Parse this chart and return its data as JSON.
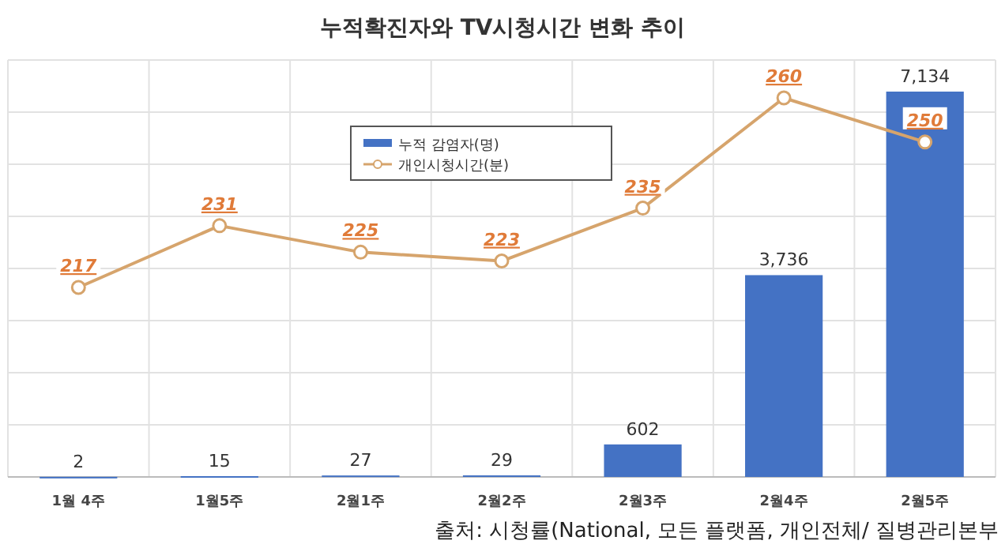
{
  "chart_data": {
    "type": "bar",
    "title": "누적확진자와 TV시청시간 변화 추이",
    "categories": [
      "1월 4주",
      "1월5주",
      "2월1주",
      "2월2주",
      "2월3주",
      "2월4주",
      "2월5주"
    ],
    "series": [
      {
        "name": "누적 감염자(명)",
        "color": "#4472c4",
        "values": [
          2,
          15,
          27,
          29,
          602,
          3736,
          7134
        ],
        "value_labels": [
          "2",
          "15",
          "27",
          "29",
          "602",
          "3,736",
          "7,134"
        ]
      },
      {
        "name": "개인시청시간(분)",
        "type": "line",
        "axis": "y2",
        "color": "#d6a46c",
        "marker": "circle",
        "values": [
          217,
          231,
          225,
          223,
          235,
          260,
          250
        ]
      }
    ],
    "data_labels": true,
    "grid": true,
    "legend": "top",
    "annotations": [
      "출처: 시청률(National, 모든 플랫폼, 개인전체/ 질병관리본부"
    ]
  }
}
